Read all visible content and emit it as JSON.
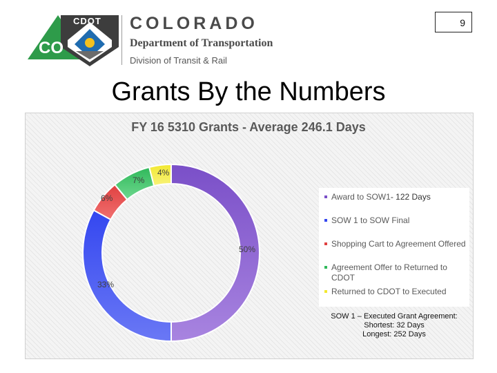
{
  "header": {
    "logo_text": "CDOT",
    "logo_co": "CO",
    "brand_name": "COLORADO",
    "department": "Department of Transportation",
    "division": "Division of Transit & Rail",
    "page_number": "9"
  },
  "slide_title": "Grants By the Numbers",
  "colors": {
    "award": "#7a4fc8",
    "sow": "#3447f0",
    "shopping": "#e04040",
    "agreement": "#2fb85a",
    "returned": "#f2e830"
  },
  "chart_data": {
    "type": "pie",
    "title": "FY 16 5310 Grants - Average 246.1 Days",
    "categories": [
      "Award to SOW1",
      "SOW 1 to SOW Final",
      "Shopping Cart to Agreement Offered",
      "Agreement Offer to Returned to CDOT",
      "Returned to CDOT to Executed"
    ],
    "values": [
      50,
      33,
      6,
      7,
      4
    ],
    "data_labels": [
      "50%",
      "33%",
      "6%",
      "7%",
      "4%"
    ],
    "annotation": "- 122 Days",
    "legend_position": "right",
    "note": [
      "SOW 1 – Executed Grant Agreement:",
      "Shortest: 32 Days",
      "Longest: 252 Days"
    ]
  }
}
